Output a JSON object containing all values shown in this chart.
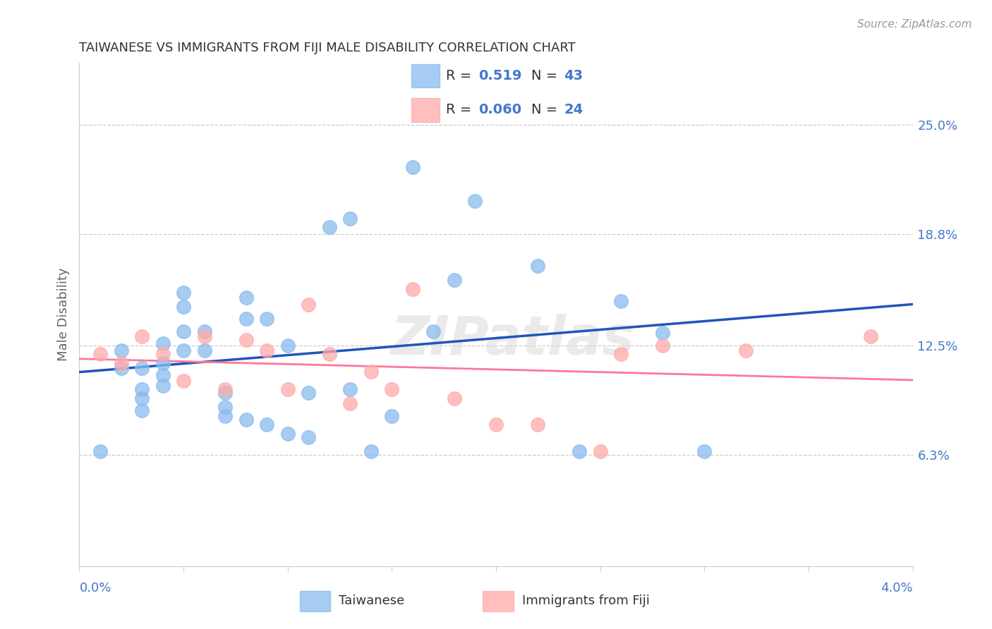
{
  "title": "TAIWANESE VS IMMIGRANTS FROM FIJI MALE DISABILITY CORRELATION CHART",
  "source": "Source: ZipAtlas.com",
  "ylabel": "Male Disability",
  "y_ticks": [
    0.063,
    0.125,
    0.188,
    0.25
  ],
  "y_tick_labels": [
    "6.3%",
    "12.5%",
    "18.8%",
    "25.0%"
  ],
  "x_min": 0.0,
  "x_max": 0.04,
  "y_min": 0.0,
  "y_max": 0.285,
  "r_taiwanese": 0.519,
  "n_taiwanese": 43,
  "r_fiji": 0.06,
  "n_fiji": 24,
  "blue_color": "#88BBEE",
  "pink_color": "#FFAAAA",
  "blue_line_color": "#2255BB",
  "pink_line_color": "#FF7799",
  "dashed_color": "#BBBBBB",
  "label_color": "#4477CC",
  "title_color": "#333333",
  "grid_color": "#CCCCCC",
  "watermark": "ZIPatlas",
  "legend_label_1": "Taiwanese",
  "legend_label_2": "Immigrants from Fiji",
  "tw_x": [
    0.001,
    0.002,
    0.002,
    0.003,
    0.003,
    0.003,
    0.003,
    0.004,
    0.004,
    0.004,
    0.004,
    0.005,
    0.005,
    0.005,
    0.005,
    0.006,
    0.006,
    0.007,
    0.007,
    0.007,
    0.008,
    0.008,
    0.008,
    0.009,
    0.009,
    0.01,
    0.01,
    0.011,
    0.011,
    0.012,
    0.013,
    0.013,
    0.014,
    0.015,
    0.016,
    0.017,
    0.018,
    0.019,
    0.022,
    0.024,
    0.026,
    0.028,
    0.03
  ],
  "tw_y": [
    0.065,
    0.122,
    0.112,
    0.112,
    0.1,
    0.095,
    0.088,
    0.126,
    0.115,
    0.108,
    0.102,
    0.155,
    0.147,
    0.133,
    0.122,
    0.133,
    0.122,
    0.098,
    0.09,
    0.085,
    0.152,
    0.14,
    0.083,
    0.14,
    0.08,
    0.125,
    0.075,
    0.098,
    0.073,
    0.192,
    0.197,
    0.1,
    0.065,
    0.085,
    0.226,
    0.133,
    0.162,
    0.207,
    0.17,
    0.065,
    0.15,
    0.132,
    0.065
  ],
  "fj_x": [
    0.001,
    0.002,
    0.003,
    0.004,
    0.005,
    0.006,
    0.007,
    0.008,
    0.009,
    0.01,
    0.011,
    0.012,
    0.013,
    0.014,
    0.015,
    0.016,
    0.018,
    0.02,
    0.022,
    0.025,
    0.026,
    0.028,
    0.032,
    0.038
  ],
  "fj_y": [
    0.12,
    0.115,
    0.13,
    0.12,
    0.105,
    0.13,
    0.1,
    0.128,
    0.122,
    0.1,
    0.148,
    0.12,
    0.092,
    0.11,
    0.1,
    0.157,
    0.095,
    0.08,
    0.08,
    0.065,
    0.12,
    0.125,
    0.122,
    0.13
  ]
}
